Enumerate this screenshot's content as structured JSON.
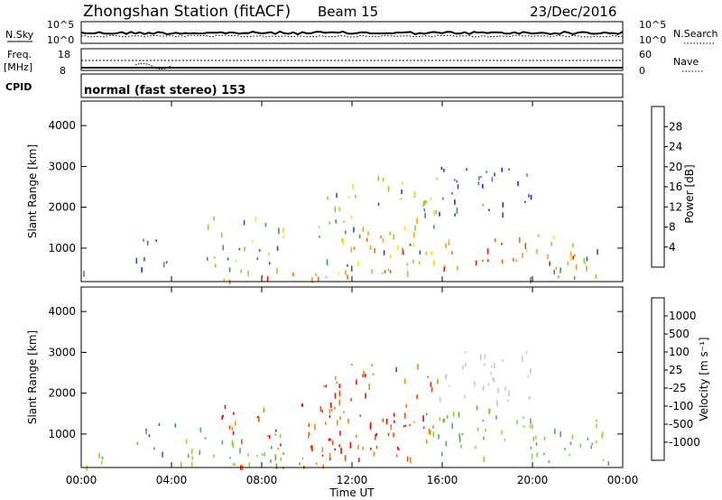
{
  "header": {
    "station": "Zhongshan Station (fitACF)",
    "beam": "Beam 15",
    "date": "23/Dec/2016"
  },
  "panels": {
    "nsky": {
      "label": "N.Sky",
      "ticks_left": [
        "10^5",
        "10^0"
      ],
      "ticks_right": [
        "10^5",
        "10^0"
      ],
      "right_label": "N.Search"
    },
    "freq": {
      "label_top": "Freq.",
      "label_unit": "[MHz]",
      "ticks_left": [
        "18",
        "8"
      ],
      "ticks_right": [
        "60",
        "0"
      ],
      "right_label": "Nave"
    },
    "cpid": {
      "label": "CPID",
      "text": "normal (fast stereo) 153"
    }
  },
  "colors": {
    "power": [
      "#1c2bff",
      "#2a52b8",
      "#4a8f6a",
      "#8fd23a",
      "#f0e020",
      "#f0a030",
      "#f06a10",
      "#e81808"
    ],
    "velocity": [
      "#e81010",
      "#ee5010",
      "#f08a20",
      "#f8c040",
      "#c8c8c0",
      "#9ad040",
      "#5aaa60",
      "#2a6ab0",
      "#2020d8"
    ]
  },
  "chart_data": [
    {
      "type": "heatmap",
      "panel": "power",
      "ylabel": "Slant Range [km]",
      "xlabel": "",
      "yticks": [
        1000,
        2000,
        3000,
        4000
      ],
      "ylim": [
        180,
        4600
      ],
      "colorbar": {
        "label": "Power [dB]",
        "ticks": [
          4,
          8,
          12,
          16,
          20,
          24,
          28
        ],
        "range": [
          0,
          32
        ]
      },
      "echo_regions": [
        {
          "t0": 0.0,
          "t1": 0.3,
          "r0": 180,
          "r1": 500,
          "level": "low"
        },
        {
          "t0": 2.3,
          "t1": 4.2,
          "r0": 500,
          "r1": 1300,
          "level": "low"
        },
        {
          "t0": 4.0,
          "t1": 12.0,
          "r0": 200,
          "r1": 420,
          "level": "high"
        },
        {
          "t0": 5.5,
          "t1": 9.0,
          "r0": 400,
          "r1": 1800,
          "level": "medium"
        },
        {
          "t0": 10.5,
          "t1": 15.8,
          "r0": 400,
          "r1": 2800,
          "level": "medium"
        },
        {
          "t0": 12.0,
          "t1": 14.5,
          "r0": 900,
          "r1": 1500,
          "level": "high"
        },
        {
          "t0": 15.8,
          "t1": 20.0,
          "r0": 1800,
          "r1": 3100,
          "level": "low"
        },
        {
          "t0": 16.0,
          "t1": 19.5,
          "r0": 500,
          "r1": 1300,
          "level": "high"
        },
        {
          "t0": 19.5,
          "t1": 23.0,
          "r0": 250,
          "r1": 1400,
          "level": "medium"
        },
        {
          "t0": 20.5,
          "t1": 22.5,
          "r0": 400,
          "r1": 900,
          "level": "high"
        }
      ]
    },
    {
      "type": "heatmap",
      "panel": "velocity",
      "ylabel": "Slant Range [km]",
      "xlabel": "Time UT",
      "yticks": [
        1000,
        2000,
        3000,
        4000
      ],
      "ylim": [
        180,
        4600
      ],
      "colorbar": {
        "label": "Velocity [m s⁻¹]",
        "ticks": [
          1000,
          500,
          100,
          25,
          -25,
          -100,
          -500,
          -1000
        ]
      },
      "echo_regions": [
        {
          "t0": 0.0,
          "t1": 2.0,
          "r0": 200,
          "r1": 600,
          "level": "green"
        },
        {
          "t0": 2.3,
          "t1": 4.2,
          "r0": 500,
          "r1": 1300,
          "level": "blue"
        },
        {
          "t0": 4.0,
          "t1": 9.0,
          "r0": 200,
          "r1": 1200,
          "level": "green"
        },
        {
          "t0": 6.0,
          "t1": 12.0,
          "r0": 200,
          "r1": 1800,
          "level": "red"
        },
        {
          "t0": 10.5,
          "t1": 15.8,
          "r0": 400,
          "r1": 2800,
          "level": "red"
        },
        {
          "t0": 15.8,
          "t1": 20.0,
          "r0": 1800,
          "r1": 3100,
          "level": "grey"
        },
        {
          "t0": 15.5,
          "t1": 20.0,
          "r0": 400,
          "r1": 1700,
          "level": "green"
        },
        {
          "t0": 19.5,
          "t1": 23.5,
          "r0": 250,
          "r1": 1400,
          "level": "green"
        }
      ]
    }
  ],
  "x_axis": {
    "ticks": [
      "00:00",
      "04:00",
      "08:00",
      "12:00",
      "16:00",
      "20:00",
      "00:00"
    ],
    "label": "Time UT"
  }
}
